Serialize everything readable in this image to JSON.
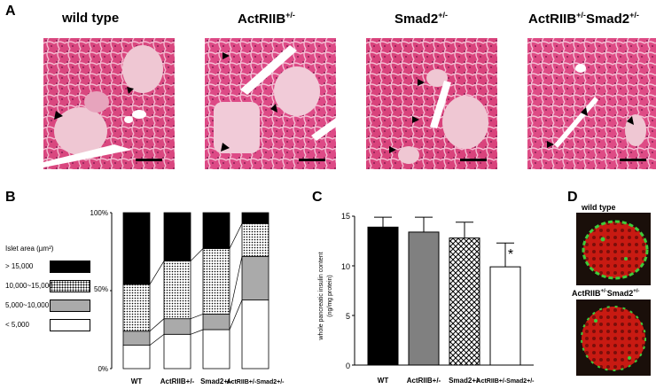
{
  "panel_a": {
    "letter": "A",
    "images": [
      {
        "title": "wild type",
        "title_html": "wild type"
      },
      {
        "title": "ActRIIB+/-"
      },
      {
        "title": "Smad2+/-"
      },
      {
        "title": "ActRIIB+/-Smad2+/-"
      }
    ]
  },
  "panel_b": {
    "letter": "B",
    "legend_title": "Islet area (µm²)",
    "legend": [
      {
        "label": "> 15,000",
        "fill": "black"
      },
      {
        "label": "10,000~15,000",
        "fill": "dots"
      },
      {
        "label": "5,000~10,000",
        "fill": "#aaaaaa"
      },
      {
        "label": "< 5,000",
        "fill": "white"
      }
    ],
    "ytick_labels": [
      "100%",
      "50%",
      "0%"
    ],
    "xtick_labels": [
      "WT",
      "ActRIIB+/-",
      "Smad2+/-",
      "ActRIIB+/-Smad2+/-"
    ]
  },
  "panel_c": {
    "letter": "C",
    "ylabel_line1": "whole pancreatic insulin content",
    "ylabel_line2": "(ng/mg protein)",
    "ytick_labels": [
      "15",
      "10",
      "5",
      "0"
    ],
    "xtick_labels": [
      "WT",
      "ActRIIB+/-",
      "Smad2+/-",
      "ActRIIB+/-Smad2+/-"
    ],
    "significance_mark": "*"
  },
  "panel_d": {
    "letter": "D",
    "labels": [
      "wild type",
      "ActRIIB+/-Smad2+/-"
    ]
  },
  "chart_data": [
    {
      "type": "bar",
      "stacked": true,
      "categories": [
        "WT",
        "ActRIIB+/-",
        "Smad2+/-",
        "ActRIIB+/-Smad2+/-"
      ],
      "series": [
        {
          "name": "< 5,000",
          "values": [
            15,
            22,
            25,
            44
          ]
        },
        {
          "name": "5,000~10,000",
          "values": [
            9,
            10,
            10,
            28
          ]
        },
        {
          "name": "10,000~15,000",
          "values": [
            30,
            37,
            42,
            21
          ]
        },
        {
          "name": "> 15,000",
          "values": [
            46,
            31,
            23,
            7
          ]
        }
      ],
      "ylim": [
        0,
        100
      ],
      "ylabel": "",
      "legend_position": "left"
    },
    {
      "type": "bar",
      "categories": [
        "WT",
        "ActRIIB+/-",
        "Smad2+/-",
        "ActRIIB+/-Smad2+/-"
      ],
      "values": [
        13.9,
        13.4,
        12.8,
        9.9
      ],
      "errors": [
        1.0,
        1.5,
        1.6,
        2.4
      ],
      "ylim": [
        0,
        15
      ],
      "ylabel": "whole pancreatic insulin content (ng/mg protein)",
      "fills": [
        "black",
        "gray",
        "crosshatch",
        "white"
      ],
      "annotations": [
        {
          "category": "ActRIIB+/-Smad2+/-",
          "text": "*"
        }
      ]
    }
  ]
}
